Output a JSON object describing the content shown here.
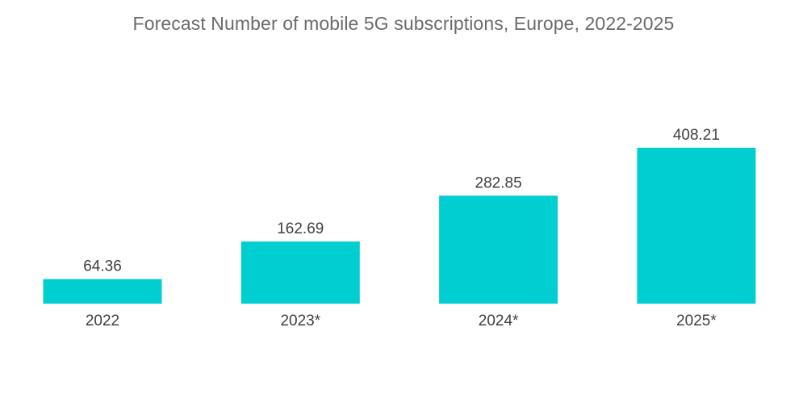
{
  "chart_data": {
    "type": "bar",
    "title": "Forecast Number of mobile 5G subscriptions, Europe, 2022-2025",
    "categories": [
      "2022",
      "2023*",
      "2024*",
      "2025*"
    ],
    "values": [
      64.36,
      162.69,
      282.85,
      408.21
    ],
    "value_labels": [
      "64.36",
      "162.69",
      "282.85",
      "408.21"
    ],
    "xlabel": "",
    "ylabel": "",
    "ylim": [
      0,
      408.21
    ],
    "grid": false,
    "legend": "none",
    "colors": {
      "bar": "#00ced1",
      "text": "#404040",
      "title": "#6b6b6b"
    }
  }
}
